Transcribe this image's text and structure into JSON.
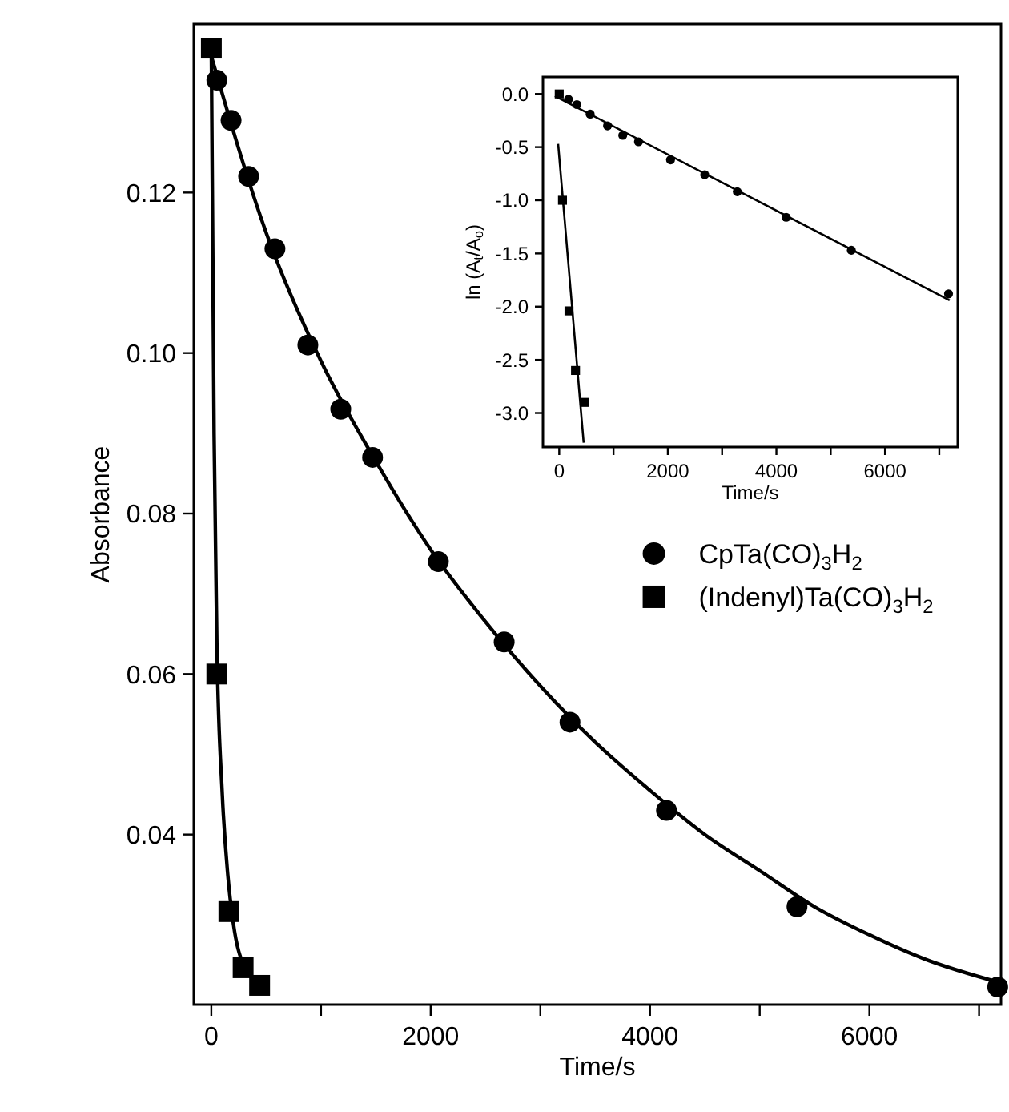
{
  "chart_data": [
    {
      "type": "scatter",
      "xlabel": "Time/s",
      "ylabel": "Absorbance",
      "xlim": [
        -160,
        7200
      ],
      "ylim": [
        0.0188,
        0.141
      ],
      "xticks": [
        0,
        {
          "value": 1000,
          "label": null
        },
        2000,
        {
          "value": 3000,
          "label": null
        },
        4000,
        {
          "value": 5000,
          "label": null
        },
        6000,
        {
          "value": 7000,
          "label": null
        }
      ],
      "yticks": [
        0.04,
        0.06,
        0.08,
        {
          "value": 0.1,
          "label": "0.10"
        },
        0.12
      ],
      "legend": "center right",
      "grid": false,
      "series": [
        {
          "name": "CpTa(CO)$_{3}$H$_{2}$",
          "marker": "circle",
          "color": "#000000",
          "x": [
            50,
            180,
            340,
            580,
            880,
            1180,
            1470,
            2070,
            2670,
            3270,
            4150,
            5340,
            7170
          ],
          "values": [
            0.134,
            0.129,
            0.122,
            0.113,
            0.101,
            0.093,
            0.087,
            0.074,
            0.064,
            0.054,
            0.043,
            0.031,
            0.021
          ]
        },
        {
          "name": "(Indenyl)Ta(CO)$_{3}$H$_{2}$",
          "marker": "square",
          "color": "#000000",
          "x": [
            0,
            50,
            160,
            290,
            440
          ],
          "values": [
            0.138,
            0.06,
            0.0304,
            0.0234,
            0.0212
          ]
        },
        {
          "type": "line",
          "line_style": "solid",
          "color": "#000000",
          "x": [
            0,
            500,
            1000,
            1500,
            2000,
            2500,
            3000,
            3500,
            4000,
            4500,
            5000,
            5500,
            6000,
            6500,
            7200
          ],
          "values": [
            0.137,
            0.115,
            0.099,
            0.0865,
            0.0755,
            0.0665,
            0.0585,
            0.0515,
            0.0455,
            0.04,
            0.0355,
            0.031,
            0.0275,
            0.0245,
            0.0215
          ]
        },
        {
          "type": "line",
          "line_style": "solid",
          "color": "#000000",
          "x": [
            0,
            25,
            50,
            100,
            150,
            200,
            300
          ],
          "values": [
            0.138,
            0.09,
            0.064,
            0.045,
            0.035,
            0.029,
            0.0235
          ]
        }
      ]
    },
    {
      "type": "scatter",
      "xlabel": "Time/s",
      "ylabel": "ln (A$_{t}$/A$_{o}$)",
      "xlim": [
        -300,
        7340
      ],
      "ylim": [
        -3.32,
        0.16
      ],
      "xticks": [
        0,
        {
          "value": 1000,
          "label": null
        },
        2000,
        {
          "value": 3000,
          "label": null
        },
        4000,
        {
          "value": 5000,
          "label": null
        },
        6000,
        {
          "value": 7000,
          "label": null
        }
      ],
      "yticks": [
        {
          "value": 0,
          "label": "0.0"
        },
        {
          "value": -0.5,
          "label": "-0.5"
        },
        {
          "value": -1,
          "label": "-1.0"
        },
        {
          "value": -1.5,
          "label": "-1.5"
        },
        {
          "value": -2,
          "label": "-2.0"
        },
        {
          "value": -2.5,
          "label": "-2.5"
        },
        {
          "value": -3,
          "label": "-3.0"
        }
      ],
      "legend": false,
      "grid": false,
      "series": [
        {
          "marker": "circle",
          "color": "#000000",
          "x": [
            170,
            325,
            570,
            890,
            1170,
            1460,
            2050,
            2680,
            3280,
            4180,
            5380,
            7170
          ],
          "values": [
            -0.05,
            -0.1,
            -0.19,
            -0.3,
            -0.39,
            -0.45,
            -0.62,
            -0.76,
            -0.92,
            -1.16,
            -1.47,
            -1.88
          ]
        },
        {
          "marker": "square",
          "color": "#000000",
          "x": [
            0,
            60,
            180,
            300,
            470
          ],
          "values": [
            0,
            -1.0,
            -2.04,
            -2.6,
            -2.9
          ]
        },
        {
          "type": "line",
          "line_style": "solid",
          "color": "#000000",
          "x": [
            -80,
            7190
          ],
          "values": [
            -0.02,
            -1.94
          ]
        },
        {
          "type": "line",
          "line_style": "solid",
          "color": "#000000",
          "x": [
            -20,
            450
          ],
          "values": [
            -0.47,
            -3.28
          ]
        }
      ]
    }
  ]
}
